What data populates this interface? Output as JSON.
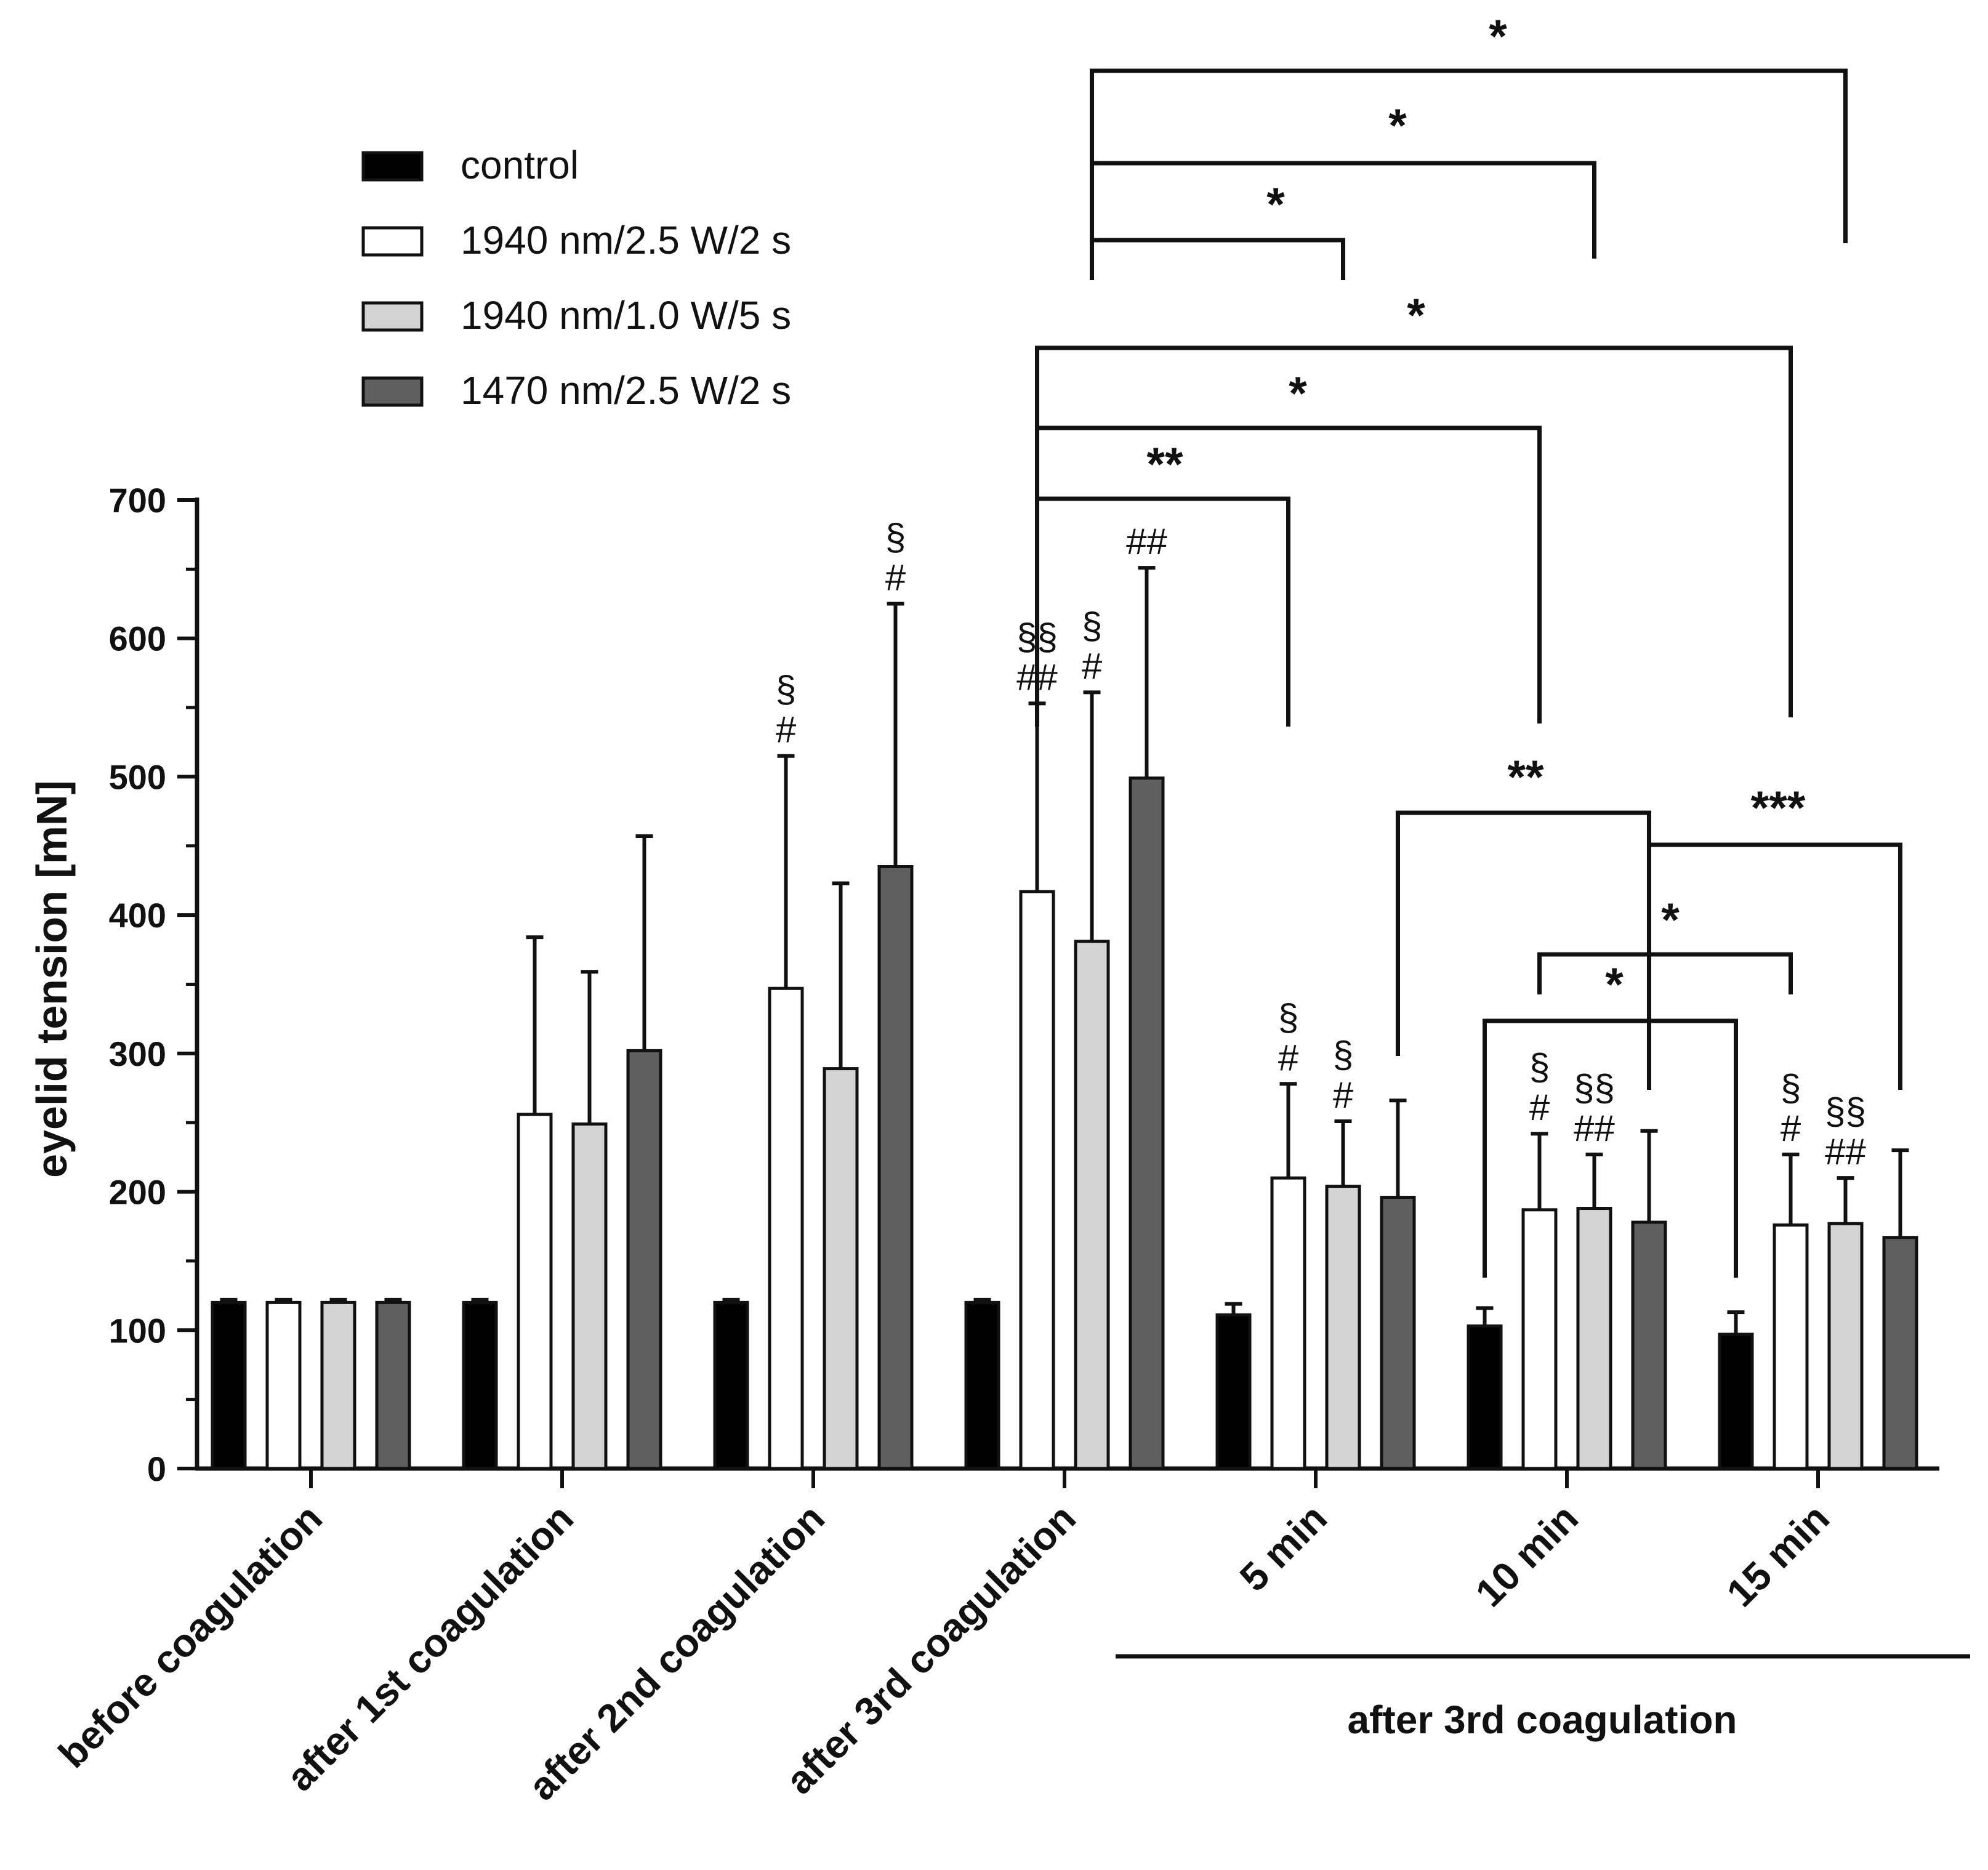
{
  "chart_data": {
    "type": "bar",
    "title": "",
    "xlabel": "",
    "ylabel": "eyelid tension [mN]",
    "ylim": [
      0,
      700
    ],
    "yticks": [
      "0",
      "100",
      "200",
      "300",
      "400",
      "500",
      "600",
      "700"
    ],
    "categories": [
      "before coagulation",
      "after 1st coagulation",
      "after 2nd coagulation",
      "after 3rd coagulation",
      "5 min",
      "10 min",
      "15 min"
    ],
    "group_label": "after 3rd coagulation",
    "legend_position": "top-left",
    "series": [
      {
        "name": "control",
        "color": "#000000",
        "values": [
          120,
          120,
          120,
          120,
          111,
          103,
          97
        ],
        "errors": [
          2,
          2,
          2,
          2,
          8,
          13,
          16
        ],
        "marks": [
          [],
          [],
          [],
          [],
          [],
          [],
          []
        ]
      },
      {
        "name": "1940 nm/2.5 W/2 s",
        "color": "#ffffff",
        "values": [
          120,
          256,
          347,
          417,
          210,
          187,
          176
        ],
        "errors": [
          2,
          128,
          168,
          136,
          68,
          55,
          51
        ],
        "marks": [
          [],
          [],
          [
            "§",
            "#"
          ],
          [
            "§§",
            "##"
          ],
          [
            "§",
            "#"
          ],
          [
            "§",
            "#"
          ],
          [
            "§",
            "#"
          ]
        ]
      },
      {
        "name": "1940 nm/1.0 W/5 s",
        "color": "#d4d4d4",
        "values": [
          120,
          249,
          289,
          381,
          204,
          188,
          177
        ],
        "errors": [
          2,
          110,
          134,
          180,
          47,
          39,
          33
        ],
        "marks": [
          [],
          [],
          [],
          [
            "§",
            "#"
          ],
          [
            "§",
            "#"
          ],
          [
            "§§",
            "##"
          ],
          [
            "§§",
            "##"
          ]
        ]
      },
      {
        "name": "1470 nm/2.5 W/2 s",
        "color": "#5f5f5f",
        "values": [
          120,
          302,
          435,
          499,
          196,
          178,
          167
        ],
        "errors": [
          2,
          155,
          190,
          152,
          70,
          66,
          63
        ],
        "marks": [
          [],
          [],
          [
            "§",
            "#"
          ],
          [
            "##"
          ],
          [],
          [],
          []
        ]
      }
    ],
    "significance": [
      {
        "label": "*",
        "from": [
          3,
          2
        ],
        "to": [
          6,
          2
        ]
      },
      {
        "label": "*",
        "from": [
          3,
          2
        ],
        "to": [
          5,
          2
        ]
      },
      {
        "label": "*",
        "from": [
          3,
          2
        ],
        "to": [
          4,
          2
        ]
      },
      {
        "label": "*",
        "from": [
          3,
          1
        ],
        "to": [
          6,
          1
        ]
      },
      {
        "label": "*",
        "from": [
          3,
          1
        ],
        "to": [
          5,
          1
        ]
      },
      {
        "label": "**",
        "from": [
          3,
          1
        ],
        "to": [
          4,
          1
        ]
      },
      {
        "label": "**",
        "from": [
          4,
          3
        ],
        "to": [
          5,
          3
        ]
      },
      {
        "label": "***",
        "from": [
          5,
          3
        ],
        "to": [
          6,
          3
        ]
      },
      {
        "label": "*",
        "from": [
          5,
          1
        ],
        "to": [
          6,
          1
        ]
      },
      {
        "label": "*",
        "from": [
          5,
          0
        ],
        "to": [
          6,
          0
        ]
      }
    ]
  }
}
